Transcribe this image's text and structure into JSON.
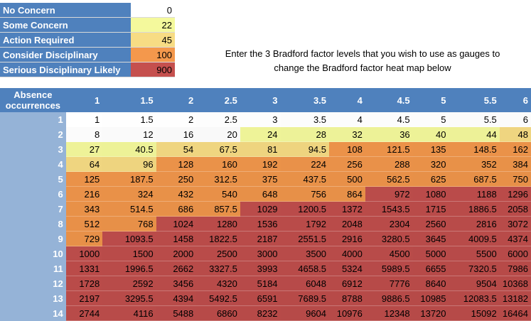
{
  "legend": [
    {
      "label": "No Concern",
      "value": "0",
      "color": "#ffffff"
    },
    {
      "label": "Some Concern",
      "value": "22",
      "color": "#f4f99c"
    },
    {
      "label": "Action Required",
      "value": "45",
      "color": "#f7dc84"
    },
    {
      "label": "Consider Disciplinary",
      "value": "100",
      "color": "#f4984c"
    },
    {
      "label": "Serious Disciplinary Likely",
      "value": "900",
      "color": "#c5504e"
    }
  ],
  "instruction": {
    "line1": "Enter the 3 Bradford factor levels that you wish to use as gauges to",
    "line2": "change the Bradford factor heat map below"
  },
  "heatmap": {
    "corner_line1": "Absence",
    "corner_line2": "occurrences",
    "columns": [
      "1",
      "1.5",
      "2",
      "2.5",
      "3",
      "3.5",
      "4",
      "4.5",
      "5",
      "5.5",
      "6"
    ],
    "rows": [
      {
        "label": "1",
        "cells": [
          "1",
          "1.5",
          "2",
          "2.5",
          "3",
          "3.5",
          "4",
          "4.5",
          "5",
          "5.5",
          "6"
        ]
      },
      {
        "label": "2",
        "cells": [
          "8",
          "12",
          "16",
          "20",
          "24",
          "28",
          "32",
          "36",
          "40",
          "44",
          "48"
        ]
      },
      {
        "label": "3",
        "cells": [
          "27",
          "40.5",
          "54",
          "67.5",
          "81",
          "94.5",
          "108",
          "121.5",
          "135",
          "148.5",
          "162"
        ]
      },
      {
        "label": "4",
        "cells": [
          "64",
          "96",
          "128",
          "160",
          "192",
          "224",
          "256",
          "288",
          "320",
          "352",
          "384"
        ]
      },
      {
        "label": "5",
        "cells": [
          "125",
          "187.5",
          "250",
          "312.5",
          "375",
          "437.5",
          "500",
          "562.5",
          "625",
          "687.5",
          "750"
        ]
      },
      {
        "label": "6",
        "cells": [
          "216",
          "324",
          "432",
          "540",
          "648",
          "756",
          "864",
          "972",
          "1080",
          "1188",
          "1296"
        ]
      },
      {
        "label": "7",
        "cells": [
          "343",
          "514.5",
          "686",
          "857.5",
          "1029",
          "1200.5",
          "1372",
          "1543.5",
          "1715",
          "1886.5",
          "2058"
        ]
      },
      {
        "label": "8",
        "cells": [
          "512",
          "768",
          "1024",
          "1280",
          "1536",
          "1792",
          "2048",
          "2304",
          "2560",
          "2816",
          "3072"
        ]
      },
      {
        "label": "9",
        "cells": [
          "729",
          "1093.5",
          "1458",
          "1822.5",
          "2187",
          "2551.5",
          "2916",
          "3280.5",
          "3645",
          "4009.5",
          "4374"
        ]
      },
      {
        "label": "10",
        "cells": [
          "1000",
          "1500",
          "2000",
          "2500",
          "3000",
          "3500",
          "4000",
          "4500",
          "5000",
          "5500",
          "6000"
        ]
      },
      {
        "label": "11",
        "cells": [
          "1331",
          "1996.5",
          "2662",
          "3327.5",
          "3993",
          "4658.5",
          "5324",
          "5989.5",
          "6655",
          "7320.5",
          "7986"
        ]
      },
      {
        "label": "12",
        "cells": [
          "1728",
          "2592",
          "3456",
          "4320",
          "5184",
          "6048",
          "6912",
          "7776",
          "8640",
          "9504",
          "10368"
        ]
      },
      {
        "label": "13",
        "cells": [
          "2197",
          "3295.5",
          "4394",
          "5492.5",
          "6591",
          "7689.5",
          "8788",
          "9886.5",
          "10985",
          "12083.5",
          "13182"
        ]
      },
      {
        "label": "14",
        "cells": [
          "2744",
          "4116",
          "5488",
          "6860",
          "8232",
          "9604",
          "10976",
          "12348",
          "13720",
          "15092",
          "16464"
        ]
      }
    ]
  }
}
